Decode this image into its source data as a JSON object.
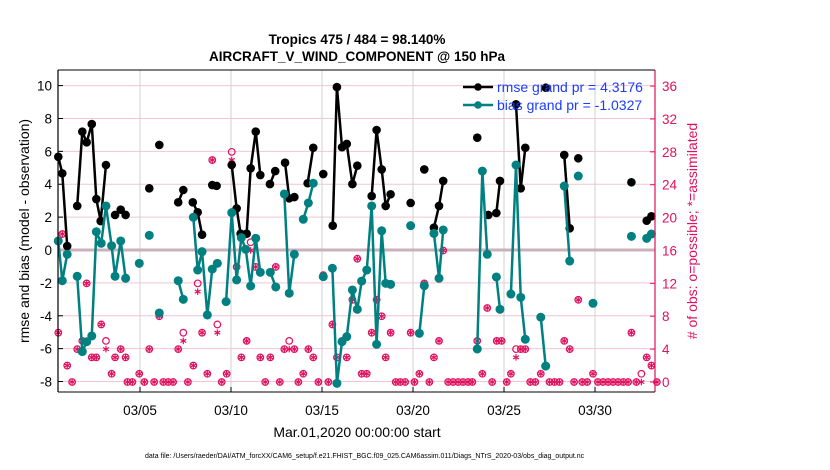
{
  "chart_data": {
    "type": "line",
    "title": "Tropics 475 / 484 = 98.140%",
    "subtitle": "AIRCRAFT_V_WIND_COMPONENT @ 150 hPa",
    "xlabel": "Mar.01,2020 00:00:00 start",
    "ylabel": "rmse and bias (model - observation)",
    "y2label": "# of obs: o=possible; *=assimilated",
    "footer": "data file: /Users/raeder/DAI/ATM_forcXX/CAM6_setup/f.e21.FHIST_BGC.f09_025.CAM6assim.011/Diags_NTrS_2020-03/obs_diag_output.nc",
    "x_units": "days since Mar.01,2020 00:00:00",
    "xlim": [
      -0.5,
      32.4
    ],
    "ylim": [
      -9,
      11
    ],
    "y2lim": [
      -4,
      44
    ],
    "xticks": [
      {
        "value": 4,
        "label": "03/05"
      },
      {
        "value": 9,
        "label": "03/10"
      },
      {
        "value": 14,
        "label": "03/15"
      },
      {
        "value": 19,
        "label": "03/20"
      },
      {
        "value": 24,
        "label": "03/25"
      },
      {
        "value": 29,
        "label": "03/30"
      }
    ],
    "yticks": [
      -8,
      -6,
      -4,
      -2,
      0,
      2,
      4,
      6,
      8,
      10
    ],
    "y2ticks": [
      0,
      4,
      8,
      12,
      16,
      20,
      24,
      28,
      32,
      36
    ],
    "grid": true,
    "legend": {
      "placement": "top-right",
      "entries": [
        "rmse grand pr = 4.3176",
        "bias grand pr = -1.0327"
      ]
    },
    "colors": {
      "rmse": "#000000",
      "bias": "#008080",
      "obs": "#e0115f",
      "legend_text": "#1a3cff",
      "zero_line": "#b0b0b0"
    },
    "series": [
      {
        "name": "rmse",
        "segments": [
          [
            [
              -0.49,
              5.67
            ],
            [
              -0.27,
              4.66
            ],
            [
              0.0,
              0.24
            ]
          ],
          [
            [
              0.55,
              2.68
            ],
            [
              0.83,
              7.2
            ],
            [
              1.07,
              6.55
            ],
            [
              1.35,
              7.66
            ],
            [
              1.6,
              3.1
            ],
            [
              1.84,
              1.76
            ],
            [
              2.13,
              5.17
            ]
          ],
          [
            [
              2.63,
              2.13
            ],
            [
              2.94,
              2.45
            ],
            [
              3.21,
              2.13
            ]
          ],
          [
            [
              4.51,
              3.75
            ]
          ],
          [
            [
              5.06,
              6.39
            ]
          ],
          [
            [
              6.1,
              2.9
            ],
            [
              6.38,
              3.65
            ]
          ],
          [
            [
              6.9,
              2.9
            ],
            [
              7.17,
              2.29
            ],
            [
              7.41,
              0.93
            ]
          ],
          [
            [
              7.97,
              3.95
            ],
            [
              8.21,
              3.9
            ]
          ],
          [
            [
              9.04,
              5.17
            ],
            [
              9.31,
              2.53
            ],
            [
              9.53,
              0.99
            ],
            [
              9.86,
              0.99
            ],
            [
              10.08,
              4.97
            ],
            [
              10.36,
              7.2
            ],
            [
              10.61,
              4.56
            ]
          ],
          [
            [
              11.14,
              4.01
            ],
            [
              11.43,
              4.8
            ]
          ],
          [
            [
              11.97,
              5.31
            ],
            [
              12.2,
              3.14
            ],
            [
              12.48,
              3.22
            ]
          ],
          [
            [
              13.21,
              4.06
            ],
            [
              13.52,
              6.22
            ]
          ],
          [
            [
              14.07,
              4.62
            ]
          ],
          [
            [
              14.59,
              1.48
            ],
            [
              14.82,
              9.91
            ],
            [
              15.1,
              6.25
            ],
            [
              15.36,
              6.45
            ],
            [
              15.67,
              4.01
            ],
            [
              15.94,
              5.13
            ]
          ],
          [
            [
              16.73,
              3.28
            ],
            [
              17.0,
              7.3
            ],
            [
              17.28,
              4.9
            ],
            [
              17.5,
              2.68
            ],
            [
              17.77,
              3.39
            ]
          ],
          [
            [
              18.87,
              2.86
            ]
          ],
          [
            [
              19.62,
              4.9
            ]
          ],
          [
            [
              20.15,
              1.36
            ],
            [
              20.43,
              2.68
            ],
            [
              20.66,
              4.2
            ]
          ],
          [
            [
              22.53,
              6.83
            ]
          ],
          [
            [
              23.14,
              2.13
            ]
          ],
          [
            [
              23.58,
              2.25
            ],
            [
              23.78,
              4.2
            ]
          ],
          [
            [
              24.66,
              8.86
            ],
            [
              24.92,
              3.75
            ],
            [
              25.17,
              6.22
            ]
          ],
          [
            [
              26.29,
              9.87
            ]
          ],
          [
            [
              27.31,
              5.78
            ],
            [
              27.61,
              1.32
            ]
          ],
          [
            [
              28.08,
              5.58
            ]
          ],
          [
            [
              31.0,
              4.12
            ]
          ],
          [
            [
              31.84,
              1.78
            ],
            [
              32.1,
              2.05
            ]
          ]
        ]
      },
      {
        "name": "bias",
        "segments": [
          [
            [
              -0.49,
              0.55
            ],
            [
              -0.27,
              -1.87
            ],
            [
              0.0,
              -0.26
            ]
          ],
          [
            [
              0.55,
              -1.6
            ],
            [
              0.83,
              -6.18
            ],
            [
              1.07,
              -5.58
            ],
            [
              1.35,
              -5.23
            ],
            [
              1.6,
              1.11
            ],
            [
              1.87,
              0.41
            ],
            [
              2.13,
              2.68
            ],
            [
              2.44,
              0.26
            ],
            [
              2.63,
              -1.6
            ],
            [
              2.94,
              0.55
            ],
            [
              3.21,
              -1.72
            ]
          ],
          [
            [
              3.96,
              -0.81
            ]
          ],
          [
            [
              4.51,
              0.89
            ]
          ],
          [
            [
              5.06,
              -3.83
            ]
          ],
          [
            [
              6.1,
              -1.87
            ],
            [
              6.38,
              -3.0
            ]
          ],
          [
            [
              6.93,
              1.99
            ],
            [
              7.17,
              -1.22
            ],
            [
              7.41,
              -0.1
            ],
            [
              7.7,
              -3.95
            ],
            [
              7.97,
              -1.16
            ],
            [
              8.25,
              -0.81
            ]
          ],
          [
            [
              8.73,
              -3.14
            ],
            [
              9.04,
              2.27
            ],
            [
              9.31,
              -1.82
            ],
            [
              9.57,
              0.75
            ],
            [
              9.81,
              0.04
            ],
            [
              10.08,
              -2.19
            ],
            [
              10.36,
              0.71
            ],
            [
              10.61,
              -1.36
            ]
          ],
          [
            [
              11.16,
              -1.36
            ],
            [
              11.46,
              -2.25
            ]
          ],
          [
            [
              11.93,
              3.41
            ],
            [
              12.2,
              -2.63
            ],
            [
              12.48,
              -0.26
            ]
          ],
          [
            [
              12.97,
              1.87
            ],
            [
              13.25,
              2.86
            ],
            [
              13.52,
              4.06
            ]
          ],
          [
            [
              14.07,
              -1.62
            ]
          ],
          [
            [
              14.57,
              -1.11
            ],
            [
              14.82,
              -8.11
            ],
            [
              15.1,
              -5.58
            ],
            [
              15.36,
              -5.27
            ],
            [
              15.67,
              -2.43
            ],
            [
              15.94,
              -3.61
            ],
            [
              16.18,
              -1.89
            ],
            [
              16.46,
              -1.22
            ],
            [
              16.73,
              2.68
            ],
            [
              17.0,
              -5.74
            ],
            [
              17.28,
              1.17
            ],
            [
              17.5,
              -2.03
            ],
            [
              17.77,
              -2.09
            ]
          ],
          [
            [
              18.87,
              1.48
            ]
          ],
          [
            [
              19.35,
              -5.07
            ],
            [
              19.62,
              -2.17
            ]
          ],
          [
            [
              20.15,
              1.01
            ],
            [
              20.43,
              -1.72
            ],
            [
              20.66,
              1.22
            ]
          ],
          [
            [
              22.53,
              -6.02
            ],
            [
              22.81,
              4.8
            ],
            [
              23.08,
              -0.26
            ]
          ],
          [
            [
              23.58,
              -1.64
            ],
            [
              23.78,
              -3.61
            ]
          ],
          [
            [
              24.38,
              -2.68
            ],
            [
              24.66,
              5.17
            ],
            [
              24.92,
              -2.88
            ],
            [
              25.17,
              -5.43
            ]
          ],
          [
            [
              26.02,
              -4.09
            ],
            [
              26.29,
              -7.06
            ]
          ],
          [
            [
              27.31,
              3.89
            ],
            [
              27.61,
              -0.67
            ]
          ],
          [
            [
              28.08,
              4.5
            ]
          ],
          [
            [
              28.89,
              -3.24
            ]
          ],
          [
            [
              31.0,
              0.83
            ]
          ],
          [
            [
              31.84,
              0.71
            ],
            [
              32.1,
              0.97
            ]
          ]
        ]
      }
    ],
    "obs_counts": {
      "days": [
        -0.49,
        -0.27,
        0.0,
        0.27,
        0.55,
        0.83,
        1.07,
        1.35,
        1.6,
        1.87,
        2.13,
        2.44,
        2.63,
        2.94,
        3.21,
        3.31,
        3.58,
        3.96,
        4.24,
        4.51,
        4.78,
        5.06,
        5.28,
        5.55,
        5.82,
        6.1,
        6.38,
        6.63,
        6.93,
        7.17,
        7.41,
        7.7,
        7.97,
        8.25,
        8.49,
        8.76,
        9.04,
        9.31,
        9.57,
        9.86,
        10.08,
        10.36,
        10.61,
        10.88,
        11.16,
        11.46,
        11.68,
        11.93,
        12.2,
        12.48,
        12.7,
        12.97,
        13.25,
        13.52,
        13.8,
        14.07,
        14.35,
        14.57,
        14.82,
        15.1,
        15.36,
        15.67,
        15.94,
        16.18,
        16.46,
        16.73,
        17.0,
        17.28,
        17.5,
        17.77,
        18.05,
        18.3,
        18.57,
        18.87,
        19.08,
        19.35,
        19.62,
        19.9,
        20.15,
        20.43,
        20.66,
        20.93,
        21.2,
        21.48,
        21.75,
        22.02,
        22.26,
        22.53,
        22.81,
        23.08,
        23.35,
        23.6,
        23.87,
        24.15,
        24.38,
        24.66,
        24.92,
        25.17,
        25.44,
        25.72,
        26.02,
        26.29,
        26.5,
        26.78,
        27.05,
        27.31,
        27.61,
        27.85,
        28.08,
        28.3,
        28.57,
        28.89,
        29.16,
        29.44,
        29.72,
        29.99,
        30.27,
        30.55,
        30.82,
        31.0,
        31.27,
        31.55,
        31.84,
        32.1,
        32.4
      ],
      "possible": [
        6,
        18,
        2,
        0,
        4,
        5,
        12,
        3,
        3,
        7,
        5,
        1,
        3,
        4,
        3,
        0,
        0,
        1,
        0,
        4,
        0,
        8,
        0,
        0,
        0,
        4,
        6,
        0,
        2,
        12,
        6,
        1,
        27,
        7,
        0,
        1,
        28,
        14,
        3,
        5,
        17,
        14,
        3,
        0,
        3,
        14,
        0,
        4,
        5,
        4,
        0,
        1,
        4,
        3,
        0,
        13,
        0,
        7,
        3,
        5,
        3,
        10,
        15,
        1,
        1,
        6,
        10,
        8,
        3,
        6,
        0,
        0,
        0,
        6,
        0,
        1,
        12,
        0,
        3,
        5,
        16,
        0,
        0,
        0,
        0,
        0,
        0,
        5,
        1,
        9,
        0,
        5,
        5,
        0,
        1,
        4,
        4,
        4,
        0,
        0,
        1,
        2,
        0,
        0,
        0,
        5,
        4,
        0,
        10,
        0,
        0,
        1,
        0,
        0,
        0,
        0,
        0,
        0,
        0,
        6,
        0,
        1,
        3,
        2,
        0
      ],
      "assimilated": [
        6,
        18,
        2,
        0,
        4,
        5,
        12,
        3,
        3,
        7,
        4,
        1,
        3,
        4,
        3,
        0,
        0,
        1,
        0,
        4,
        0,
        8,
        0,
        0,
        0,
        4,
        5,
        0,
        2,
        11,
        6,
        1,
        27,
        6,
        0,
        1,
        27,
        14,
        3,
        5,
        16,
        14,
        3,
        0,
        3,
        14,
        0,
        4,
        4,
        4,
        0,
        1,
        4,
        3,
        0,
        13,
        0,
        7,
        3,
        5,
        3,
        10,
        15,
        1,
        1,
        6,
        10,
        8,
        3,
        6,
        0,
        0,
        0,
        6,
        0,
        1,
        12,
        0,
        3,
        5,
        16,
        0,
        0,
        0,
        0,
        0,
        0,
        5,
        1,
        9,
        0,
        5,
        5,
        0,
        1,
        3,
        4,
        4,
        0,
        0,
        1,
        2,
        0,
        0,
        0,
        5,
        4,
        0,
        10,
        0,
        0,
        1,
        0,
        0,
        0,
        0,
        0,
        0,
        0,
        6,
        0,
        0,
        3,
        2,
        0
      ]
    }
  }
}
